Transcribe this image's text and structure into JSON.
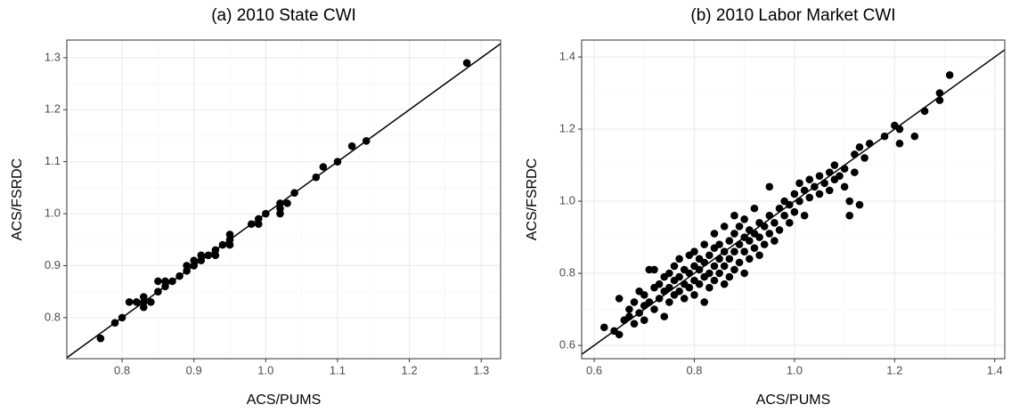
{
  "chart_data": [
    {
      "type": "scatter",
      "title": "(a) 2010 State CWI",
      "x_label": "ACS/PUMS",
      "y_label": "ACS/FSRDC",
      "color": "#000000",
      "grid": true,
      "minor_grid": true,
      "diagonal": true,
      "xlim": [
        0.723,
        1.327
      ],
      "ylim": [
        0.721,
        1.334
      ],
      "xticks": [
        0.8,
        0.9,
        {
          "value": 1,
          "label": "1.0"
        },
        1.1,
        1.2,
        1.3
      ],
      "yticks": [
        0.8,
        0.9,
        {
          "value": 1,
          "label": "1.0"
        },
        1.1,
        1.2,
        1.3
      ],
      "x": [
        0.77,
        0.79,
        0.8,
        0.81,
        0.82,
        0.83,
        0.83,
        0.84,
        0.83,
        0.85,
        0.85,
        0.86,
        0.86,
        0.87,
        0.88,
        0.89,
        0.89,
        0.9,
        0.9,
        0.91,
        0.91,
        0.92,
        0.93,
        0.93,
        0.94,
        0.95,
        0.95,
        0.95,
        0.98,
        0.99,
        0.99,
        1.0,
        1.02,
        1.02,
        1.02,
        1.03,
        1.04,
        1.07,
        1.08,
        1.1,
        1.12,
        1.14,
        1.28
      ],
      "values": [
        0.76,
        0.79,
        0.8,
        0.83,
        0.83,
        0.82,
        0.84,
        0.83,
        0.83,
        0.85,
        0.87,
        0.86,
        0.87,
        0.87,
        0.88,
        0.89,
        0.9,
        0.9,
        0.91,
        0.92,
        0.91,
        0.92,
        0.92,
        0.93,
        0.94,
        0.94,
        0.95,
        0.96,
        0.98,
        0.98,
        0.99,
        1.0,
        1.0,
        1.01,
        1.02,
        1.02,
        1.04,
        1.07,
        1.09,
        1.1,
        1.13,
        1.14,
        1.29
      ]
    },
    {
      "type": "scatter",
      "title": "(b) 2010 Labor Market CWI",
      "x_label": "ACS/PUMS",
      "y_label": "ACS/FSRDC",
      "color": "#000000",
      "grid": true,
      "minor_grid": true,
      "diagonal": true,
      "xlim": [
        0.575,
        1.42
      ],
      "ylim": [
        0.563,
        1.447
      ],
      "xticks": [
        0.6,
        0.8,
        {
          "value": 1,
          "label": "1.0"
        },
        1.2,
        1.4
      ],
      "yticks": [
        0.6,
        0.8,
        {
          "value": 1,
          "label": "1.0"
        },
        1.2,
        1.4
      ],
      "x": [
        0.62,
        0.64,
        0.65,
        0.65,
        0.66,
        0.67,
        0.67,
        0.68,
        0.68,
        0.69,
        0.69,
        0.7,
        0.7,
        0.7,
        0.71,
        0.71,
        0.72,
        0.72,
        0.72,
        0.73,
        0.73,
        0.74,
        0.74,
        0.74,
        0.75,
        0.75,
        0.75,
        0.76,
        0.76,
        0.76,
        0.77,
        0.77,
        0.77,
        0.78,
        0.78,
        0.78,
        0.79,
        0.79,
        0.79,
        0.8,
        0.8,
        0.8,
        0.8,
        0.81,
        0.81,
        0.81,
        0.82,
        0.82,
        0.82,
        0.82,
        0.83,
        0.83,
        0.83,
        0.84,
        0.84,
        0.84,
        0.84,
        0.85,
        0.85,
        0.85,
        0.86,
        0.86,
        0.86,
        0.86,
        0.87,
        0.87,
        0.87,
        0.88,
        0.88,
        0.88,
        0.88,
        0.89,
        0.89,
        0.89,
        0.9,
        0.9,
        0.9,
        0.9,
        0.91,
        0.91,
        0.91,
        0.92,
        0.92,
        0.92,
        0.93,
        0.93,
        0.93,
        0.94,
        0.94,
        0.95,
        0.95,
        0.95,
        0.96,
        0.96,
        0.97,
        0.97,
        0.98,
        0.98,
        0.99,
        0.99,
        1.0,
        1.0,
        1.01,
        1.01,
        1.02,
        1.02,
        1.03,
        1.03,
        1.04,
        1.05,
        1.05,
        1.06,
        1.07,
        1.07,
        1.08,
        1.08,
        1.09,
        1.1,
        1.1,
        1.11,
        1.11,
        1.12,
        1.12,
        1.13,
        1.13,
        1.14,
        1.15,
        1.18,
        1.2,
        1.21,
        1.21,
        1.24,
        1.26,
        1.29,
        1.29,
        1.31
      ],
      "values": [
        0.65,
        0.64,
        0.63,
        0.73,
        0.67,
        0.68,
        0.7,
        0.66,
        0.72,
        0.69,
        0.75,
        0.67,
        0.71,
        0.74,
        0.72,
        0.81,
        0.7,
        0.76,
        0.81,
        0.73,
        0.77,
        0.68,
        0.75,
        0.79,
        0.72,
        0.76,
        0.8,
        0.74,
        0.78,
        0.82,
        0.75,
        0.79,
        0.84,
        0.73,
        0.77,
        0.81,
        0.76,
        0.8,
        0.85,
        0.74,
        0.78,
        0.82,
        0.86,
        0.77,
        0.81,
        0.84,
        0.72,
        0.79,
        0.83,
        0.88,
        0.76,
        0.8,
        0.85,
        0.78,
        0.82,
        0.87,
        0.91,
        0.8,
        0.84,
        0.88,
        0.77,
        0.82,
        0.86,
        0.93,
        0.79,
        0.84,
        0.89,
        0.81,
        0.86,
        0.91,
        0.96,
        0.83,
        0.88,
        0.93,
        0.8,
        0.86,
        0.9,
        0.95,
        0.84,
        0.89,
        0.92,
        0.87,
        0.91,
        0.98,
        0.85,
        0.9,
        0.94,
        0.88,
        0.93,
        0.91,
        0.96,
        1.04,
        0.89,
        0.94,
        0.92,
        0.98,
        0.96,
        1.0,
        0.94,
        0.99,
        1.02,
        0.97,
        1.0,
        1.05,
        0.96,
        1.03,
        1.01,
        1.06,
        1.04,
        1.02,
        1.07,
        1.05,
        1.03,
        1.08,
        1.06,
        1.1,
        1.07,
        1.09,
        1.04,
        0.96,
        1.0,
        1.13,
        1.08,
        0.99,
        1.15,
        1.12,
        1.16,
        1.18,
        1.21,
        1.2,
        1.16,
        1.18,
        1.25,
        1.28,
        1.3,
        1.35
      ]
    }
  ]
}
